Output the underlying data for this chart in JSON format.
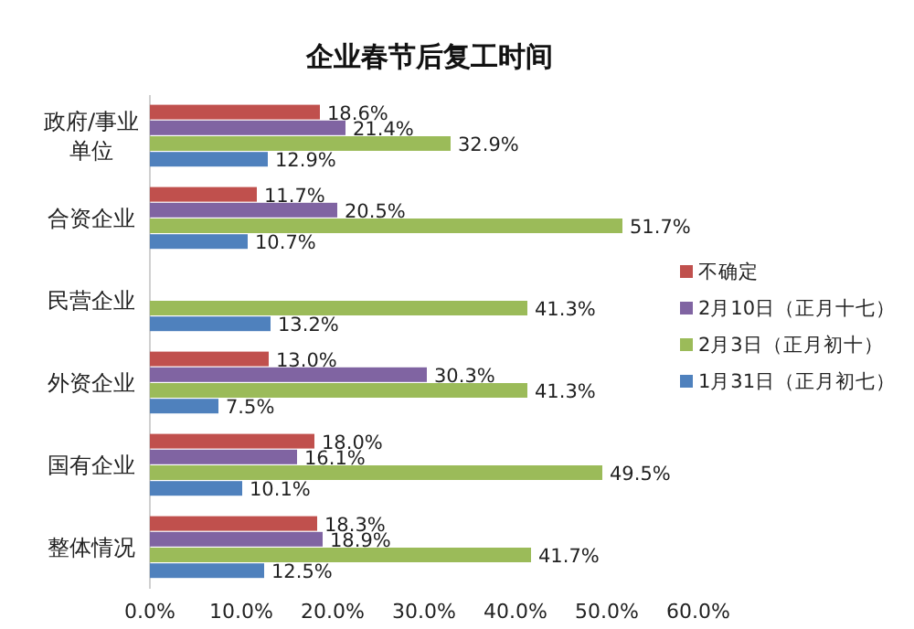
{
  "chart_data": {
    "type": "bar",
    "orientation": "horizontal",
    "title": "企业春节后复工时间",
    "categories": [
      "政府/事业单位",
      "合资企业",
      "民营企业",
      "外资企业",
      "国有企业",
      "整体情况"
    ],
    "series": [
      {
        "name": "不确定",
        "color": "#c0504d",
        "values": [
          18.6,
          11.7,
          null,
          13.0,
          18.0,
          18.3
        ],
        "value_labels": [
          "18.6%",
          "11.7%",
          null,
          "13.0%",
          "18.0%",
          "18.3%"
        ]
      },
      {
        "name": "2月10日（正月十七）",
        "color": "#8064a2",
        "values": [
          21.4,
          20.5,
          null,
          30.3,
          16.1,
          18.9
        ],
        "value_labels": [
          "21.4%",
          "20.5%",
          null,
          "30.3%",
          "16.1%",
          "18.9%"
        ]
      },
      {
        "name": "2月3日（正月初十）",
        "color": "#9bbb59",
        "values": [
          32.9,
          51.7,
          41.3,
          41.3,
          49.5,
          41.7
        ],
        "value_labels": [
          "32.9%",
          "51.7%",
          "41.3%",
          "41.3%",
          "49.5%",
          "41.7%"
        ]
      },
      {
        "name": "1月31日（正月初七）",
        "color": "#4f81bd",
        "values": [
          12.9,
          10.7,
          13.2,
          7.5,
          10.1,
          12.5
        ],
        "value_labels": [
          "12.9%",
          "10.7%",
          "13.2%",
          "7.5%",
          "10.1%",
          "12.5%"
        ]
      }
    ],
    "xlim": [
      0,
      60
    ],
    "xticks": [
      {
        "value": 0,
        "label": "0.0%"
      },
      {
        "value": 10,
        "label": "10.0%"
      },
      {
        "value": 20,
        "label": "20.0%"
      },
      {
        "value": 30,
        "label": "30.0%"
      },
      {
        "value": 40,
        "label": "40.0%"
      },
      {
        "value": 50,
        "label": "50.0%"
      },
      {
        "value": 60,
        "label": "60.0%"
      }
    ],
    "grid": false,
    "legend": "right"
  }
}
